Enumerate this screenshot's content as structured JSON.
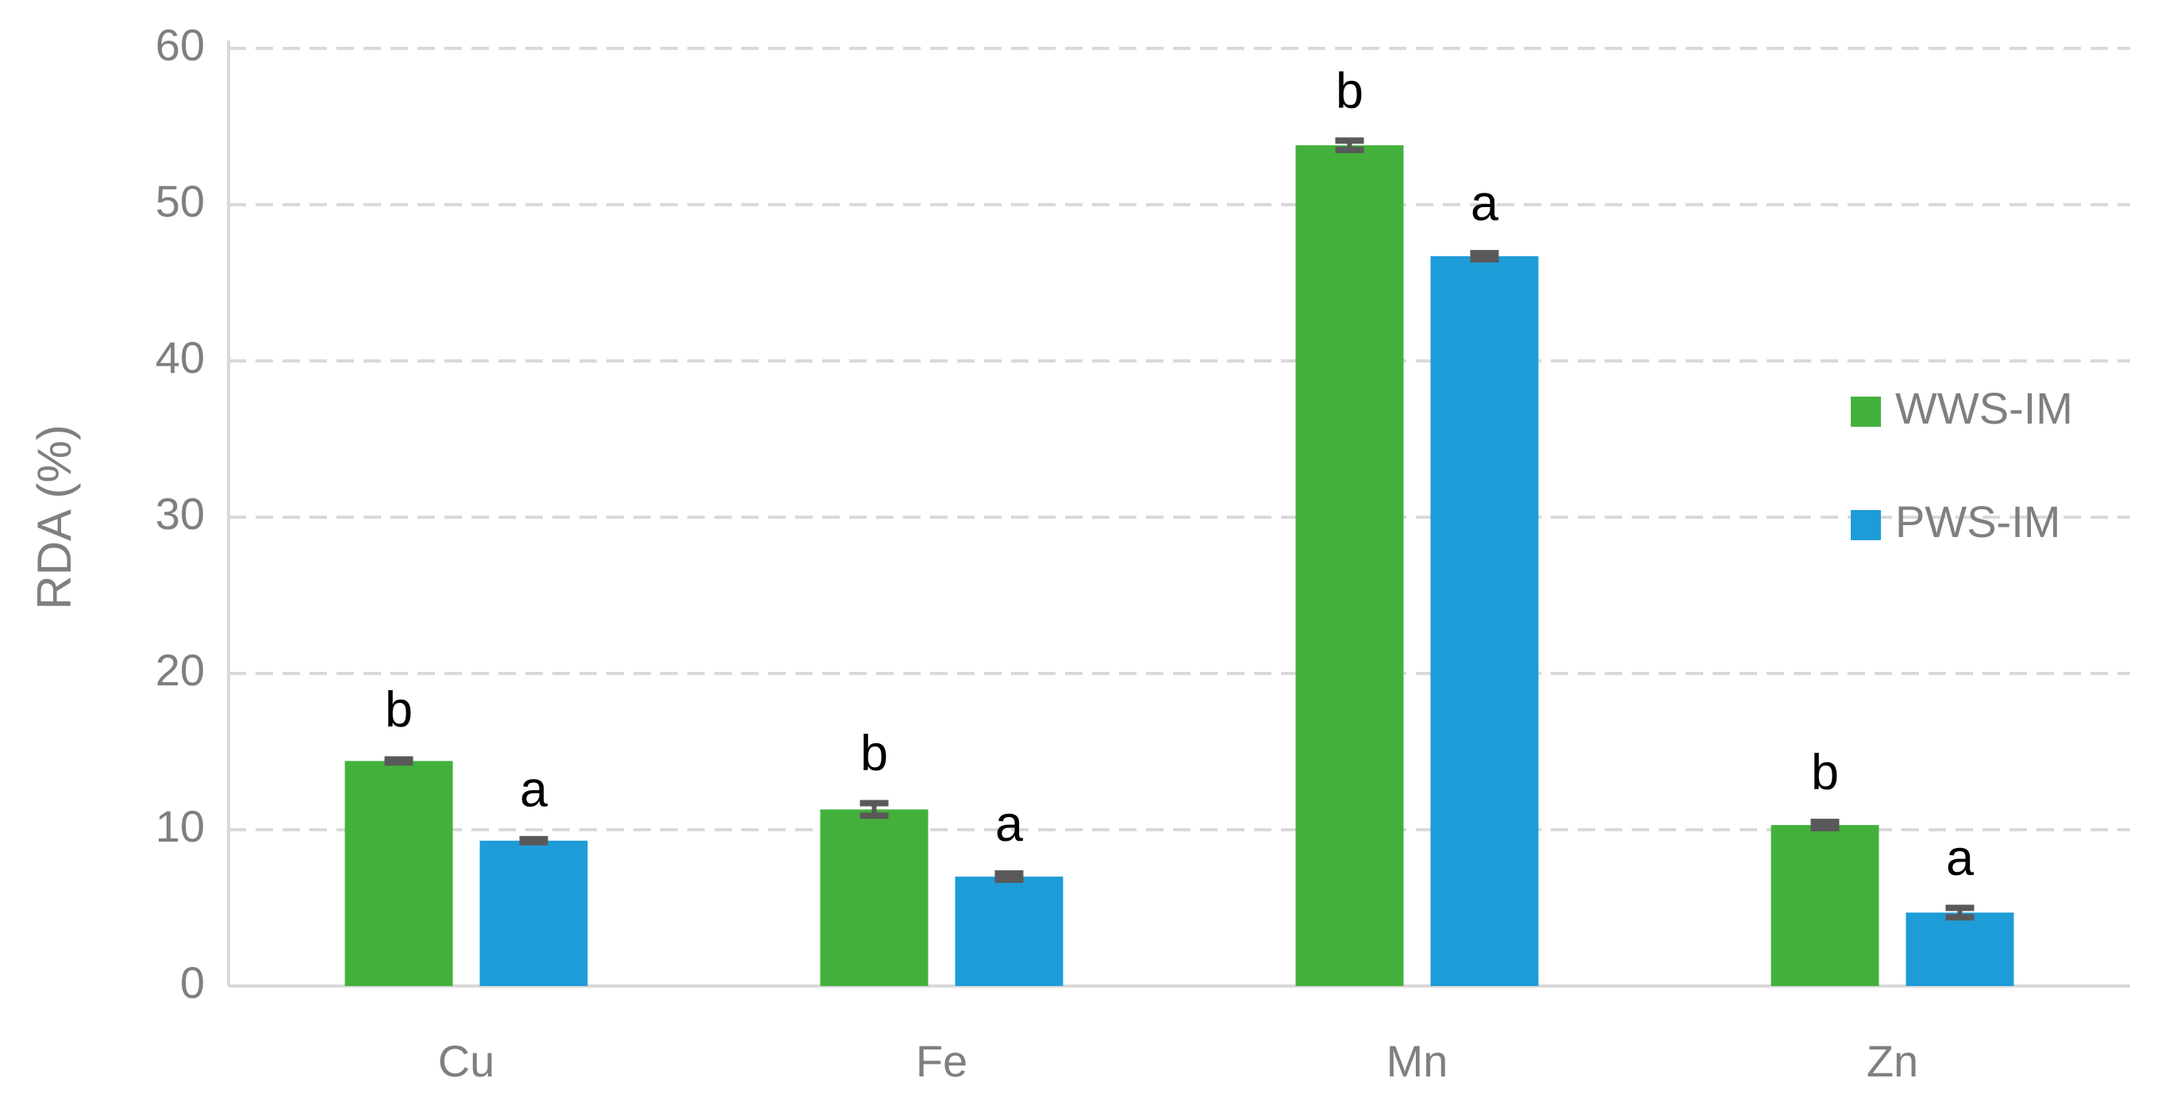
{
  "chart_data": {
    "type": "bar",
    "y_label": "RDA (%)",
    "categories": [
      "Cu",
      "Fe",
      "Mn",
      "Zn"
    ],
    "series": [
      {
        "name": "WWS-IM",
        "color": "#43b03c",
        "values": [
          14.4,
          11.3,
          53.8,
          10.3
        ],
        "errors": [
          0.1,
          0.4,
          0.3,
          0.2
        ],
        "labels": [
          "b",
          "b",
          "b",
          "b"
        ]
      },
      {
        "name": "PWS-IM",
        "color": "#1e9cd8",
        "values": [
          9.3,
          7.0,
          46.7,
          4.7
        ],
        "errors": [
          0.1,
          0.2,
          0.2,
          0.3
        ],
        "labels": [
          "a",
          "a",
          "a",
          "a"
        ]
      }
    ],
    "ylim": [
      0,
      60
    ],
    "yticks": [
      0,
      10,
      20,
      30,
      40,
      50,
      60
    ],
    "grid": true,
    "legend": "right"
  }
}
